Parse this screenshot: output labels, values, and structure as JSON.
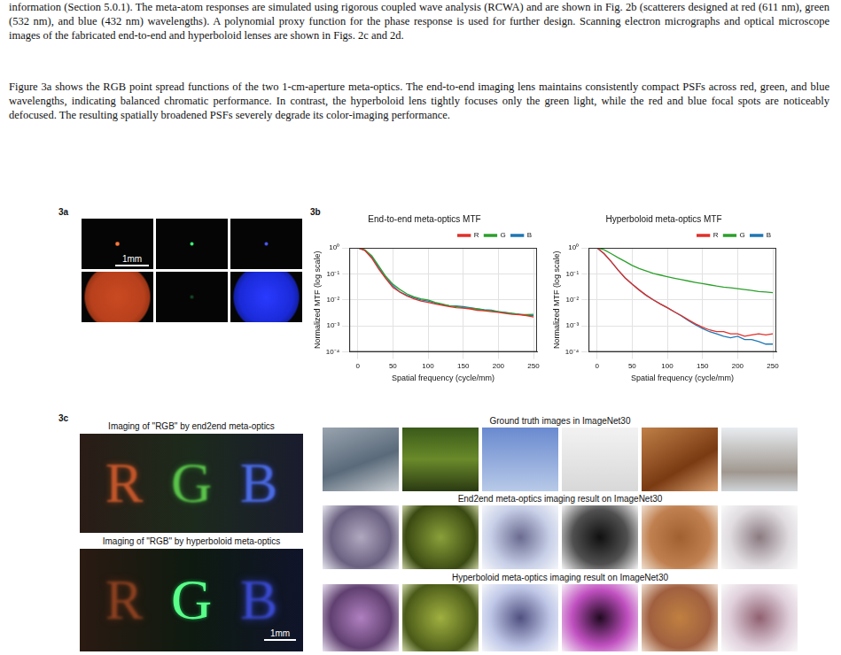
{
  "paragraphs": [
    "information (Section 5.0.1). The meta-atom responses are simulated using rigorous coupled wave analysis (RCWA) and are shown in Fig. 2b (scatterers designed at red (611 nm), green (532 nm), and blue (432 nm) wavelengths). A polynomial proxy function for the phase response is used for further design. Scanning electron micrographs and optical microscope images of the fabricated end-to-end and hyperboloid lenses are shown in Figs. 2c and 2d.",
    "Figure 3a shows the RGB point spread functions of the two 1-cm-aperture meta-optics. The end-to-end imaging lens maintains consistently compact PSFs across red, green, and blue wavelengths, indicating balanced chromatic performance. In contrast, the hyperboloid lens tightly focuses only the green light, while the red and blue focal spots are noticeably defocused. The resulting spatially broadened PSFs severely degrade its color-imaging performance."
  ],
  "figure": {
    "panel_3a": {
      "label": "3a",
      "scale_bar": "1mm"
    },
    "panel_3b": {
      "label": "3b"
    },
    "panel_3c": {
      "label": "3c",
      "rgb_captions": [
        "Imaging of \"RGB\" by end2end meta-optics",
        "Imaging of \"RGB\" by hyperboloid meta-optics"
      ],
      "rgb_letters": [
        "R",
        "G",
        "B"
      ],
      "scale_bar": "1mm",
      "imagenet_captions": [
        "Ground truth images in ImageNet30",
        "End2end meta-optics imaging result on ImageNet30",
        "Hyperboloid meta-optics imaging result on ImageNet30"
      ]
    }
  },
  "chart_data": [
    {
      "type": "line",
      "title": "End-to-end meta-optics MTF",
      "x_label": "Spatial frequency (cycle/mm)",
      "y_label": "Normalized MTF (log scale)",
      "x": [
        0,
        10,
        20,
        30,
        40,
        50,
        60,
        70,
        80,
        90,
        100,
        110,
        120,
        130,
        140,
        150,
        160,
        170,
        180,
        190,
        200,
        210,
        220,
        230,
        240,
        250
      ],
      "xlim": [
        -12,
        255
      ],
      "xticks": [
        0,
        50,
        100,
        150,
        200,
        250
      ],
      "ylim": [
        0.0001,
        1
      ],
      "yticks": [
        {
          "value": 1,
          "label": "10⁰"
        },
        {
          "value": 0.1,
          "label": "10⁻¹"
        },
        {
          "value": 0.01,
          "label": "10⁻²"
        },
        {
          "value": 0.001,
          "label": "10⁻³"
        },
        {
          "value": 0.0001,
          "label": "10⁻⁴"
        }
      ],
      "log": "y",
      "grid": true,
      "legend": "top",
      "series": [
        {
          "name": "R",
          "color": "#e0302a",
          "values": [
            1,
            0.8,
            0.4,
            0.15,
            0.065,
            0.03,
            0.02,
            0.014,
            0.011,
            0.009,
            0.008,
            0.007,
            0.0062,
            0.0055,
            0.005,
            0.0048,
            0.0045,
            0.004,
            0.0038,
            0.0035,
            0.0033,
            0.003,
            0.0028,
            0.0027,
            0.0025,
            0.0022
          ]
        },
        {
          "name": "G",
          "color": "#2ca02c",
          "values": [
            1,
            0.85,
            0.5,
            0.2,
            0.08,
            0.04,
            0.025,
            0.017,
            0.013,
            0.011,
            0.01,
            0.008,
            0.007,
            0.006,
            0.0055,
            0.005,
            0.0048,
            0.0045,
            0.004,
            0.0038,
            0.0035,
            0.0032,
            0.003,
            0.0028,
            0.0027,
            0.0028
          ]
        },
        {
          "name": "B",
          "color": "#1f77b4",
          "values": [
            1,
            0.8,
            0.45,
            0.17,
            0.07,
            0.035,
            0.02,
            0.015,
            0.012,
            0.01,
            0.009,
            0.0075,
            0.0065,
            0.006,
            0.0058,
            0.0055,
            0.005,
            0.0045,
            0.0042,
            0.004,
            0.0035,
            0.0033,
            0.003,
            0.0028,
            0.0026,
            0.0025
          ]
        }
      ]
    },
    {
      "type": "line",
      "title": "Hyperboloid meta-optics MTF",
      "x_label": "Spatial frequency (cycle/mm)",
      "y_label": "Normalized MTF (log scale)",
      "x": [
        0,
        10,
        20,
        30,
        40,
        50,
        60,
        70,
        80,
        90,
        100,
        110,
        120,
        130,
        140,
        150,
        160,
        170,
        180,
        190,
        200,
        210,
        220,
        230,
        240,
        250
      ],
      "xlim": [
        -12,
        255
      ],
      "xticks": [
        0,
        50,
        100,
        150,
        200,
        250
      ],
      "ylim": [
        0.0001,
        1
      ],
      "yticks": [
        {
          "value": 1,
          "label": "10⁰"
        },
        {
          "value": 0.1,
          "label": "10⁻¹"
        },
        {
          "value": 0.01,
          "label": "10⁻²"
        },
        {
          "value": 0.001,
          "label": "10⁻³"
        },
        {
          "value": 0.0001,
          "label": "10⁻⁴"
        }
      ],
      "log": "y",
      "grid": true,
      "legend": "top",
      "series": [
        {
          "name": "R",
          "color": "#e0302a",
          "values": [
            1,
            0.6,
            0.3,
            0.14,
            0.07,
            0.04,
            0.024,
            0.015,
            0.01,
            0.007,
            0.005,
            0.0035,
            0.0025,
            0.0017,
            0.0012,
            0.0009,
            0.0007,
            0.0006,
            0.0006,
            0.0005,
            0.0005,
            0.0004,
            0.00045,
            0.0005,
            0.00045,
            0.0005
          ]
        },
        {
          "name": "G",
          "color": "#2ca02c",
          "values": [
            1,
            0.85,
            0.6,
            0.42,
            0.3,
            0.21,
            0.16,
            0.13,
            0.105,
            0.09,
            0.078,
            0.068,
            0.06,
            0.053,
            0.047,
            0.042,
            0.038,
            0.034,
            0.031,
            0.029,
            0.027,
            0.025,
            0.023,
            0.021,
            0.02,
            0.019
          ]
        },
        {
          "name": "B",
          "color": "#1f77b4",
          "values": [
            1,
            0.6,
            0.3,
            0.14,
            0.07,
            0.04,
            0.024,
            0.015,
            0.01,
            0.007,
            0.005,
            0.0035,
            0.0024,
            0.0016,
            0.0011,
            0.0008,
            0.0006,
            0.0005,
            0.0004,
            0.00035,
            0.0004,
            0.0003,
            0.0003,
            0.00025,
            0.0002,
            0.0002
          ]
        }
      ]
    }
  ]
}
